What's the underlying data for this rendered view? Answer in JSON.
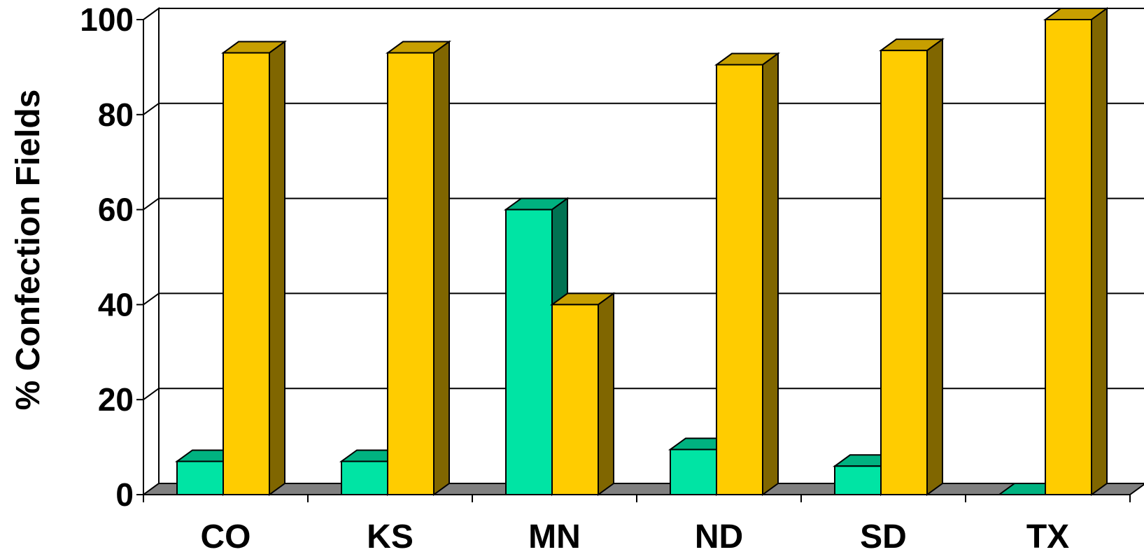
{
  "chart_data": {
    "type": "bar",
    "title": "",
    "xlabel": "",
    "ylabel": "% Confection Fields",
    "categories": [
      "CO",
      "KS",
      "MN",
      "ND",
      "SD",
      "TX"
    ],
    "ylim": [
      0,
      100
    ],
    "yticks": [
      0,
      20,
      40,
      60,
      80,
      100
    ],
    "grid": true,
    "legend": "none",
    "style": "3d",
    "series": [
      {
        "values": [
          7,
          7,
          60,
          9.5,
          6,
          0
        ],
        "color": "#00e4a4"
      },
      {
        "values": [
          93,
          93,
          40,
          90.5,
          93.5,
          100
        ],
        "color": "#ffcc00"
      }
    ],
    "floor_color": "#808080"
  }
}
